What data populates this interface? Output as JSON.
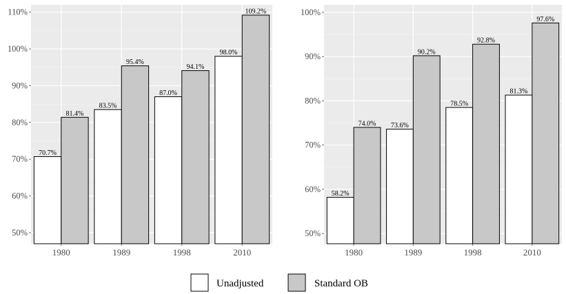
{
  "chart_data": [
    {
      "type": "bar",
      "categories": [
        "1980",
        "1989",
        "1998",
        "2010"
      ],
      "series": [
        {
          "name": "Unadjusted",
          "values": [
            70.7,
            83.5,
            87.0,
            98.0
          ],
          "labels": [
            "70.7%",
            "83.5%",
            "87.0%",
            "98.0%"
          ],
          "color": "#ffffff"
        },
        {
          "name": "Standard OB",
          "values": [
            81.4,
            95.4,
            94.1,
            109.2
          ],
          "labels": [
            "81.4%",
            "95.4%",
            "94.1%",
            "109.2%"
          ],
          "color": "#c8c8c8"
        }
      ],
      "yticks": [
        50,
        60,
        70,
        80,
        90,
        100,
        110
      ],
      "ytick_labels": [
        "50%",
        "60%",
        "70%",
        "80%",
        "90%",
        "100%",
        "110%"
      ],
      "ylim": [
        47,
        112
      ],
      "grid": true,
      "panel_background": "#ebebeb"
    },
    {
      "type": "bar",
      "categories": [
        "1980",
        "1989",
        "1998",
        "2010"
      ],
      "series": [
        {
          "name": "Unadjusted",
          "values": [
            58.2,
            73.6,
            78.5,
            81.3
          ],
          "labels": [
            "58.2%",
            "73.6%",
            "78.5%",
            "81.3%"
          ],
          "color": "#ffffff"
        },
        {
          "name": "Standard OB",
          "values": [
            74.0,
            90.2,
            92.8,
            97.6
          ],
          "labels": [
            "74.0%",
            "90.2%",
            "92.8%",
            "97.6%"
          ],
          "color": "#c8c8c8"
        }
      ],
      "yticks": [
        50,
        60,
        70,
        80,
        90,
        100
      ],
      "ytick_labels": [
        "50%",
        "60%",
        "70%",
        "80%",
        "90%",
        "100%"
      ],
      "ylim": [
        47.7,
        101.7
      ],
      "grid": true,
      "panel_background": "#ebebeb"
    }
  ],
  "legend": {
    "position": "bottom",
    "items": [
      {
        "label": "Unadjusted",
        "color": "#ffffff"
      },
      {
        "label": "Standard OB",
        "color": "#c8c8c8"
      }
    ]
  }
}
